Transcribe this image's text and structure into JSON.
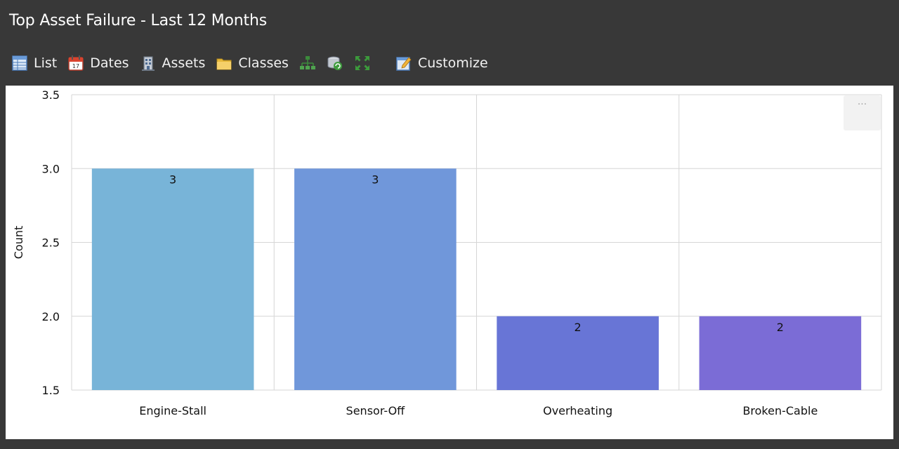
{
  "header": {
    "title": "Top Asset Failure - Last 12 Months"
  },
  "toolbar": {
    "items": [
      {
        "label": "List",
        "icon": "list-icon"
      },
      {
        "label": "Dates",
        "icon": "calendar-icon"
      },
      {
        "label": "Assets",
        "icon": "building-icon"
      },
      {
        "label": "Classes",
        "icon": "folder-icon"
      },
      {
        "label": "",
        "icon": "hierarchy-icon"
      },
      {
        "label": "",
        "icon": "database-refresh-icon"
      },
      {
        "label": "",
        "icon": "expand-icon"
      },
      {
        "label": "Customize",
        "icon": "customize-icon"
      }
    ]
  },
  "chart_menu": {
    "label": "···"
  },
  "chart_data": {
    "type": "bar",
    "categories": [
      "Engine-Stall",
      "Sensor-Off",
      "Overheating",
      "Broken-Cable"
    ],
    "values": [
      3,
      3,
      2,
      2
    ],
    "data_labels": [
      "3",
      "3",
      "2",
      "2"
    ],
    "bar_colors": [
      "#78b4d8",
      "#7097da",
      "#6875d6",
      "#7b6cd6"
    ],
    "title": "",
    "xlabel": "",
    "ylabel": "Count",
    "ylim": [
      1.5,
      3.5
    ],
    "yticks": [
      "1.5",
      "2.0",
      "2.5",
      "3.0",
      "3.5"
    ],
    "grid": true,
    "legend": "none"
  }
}
